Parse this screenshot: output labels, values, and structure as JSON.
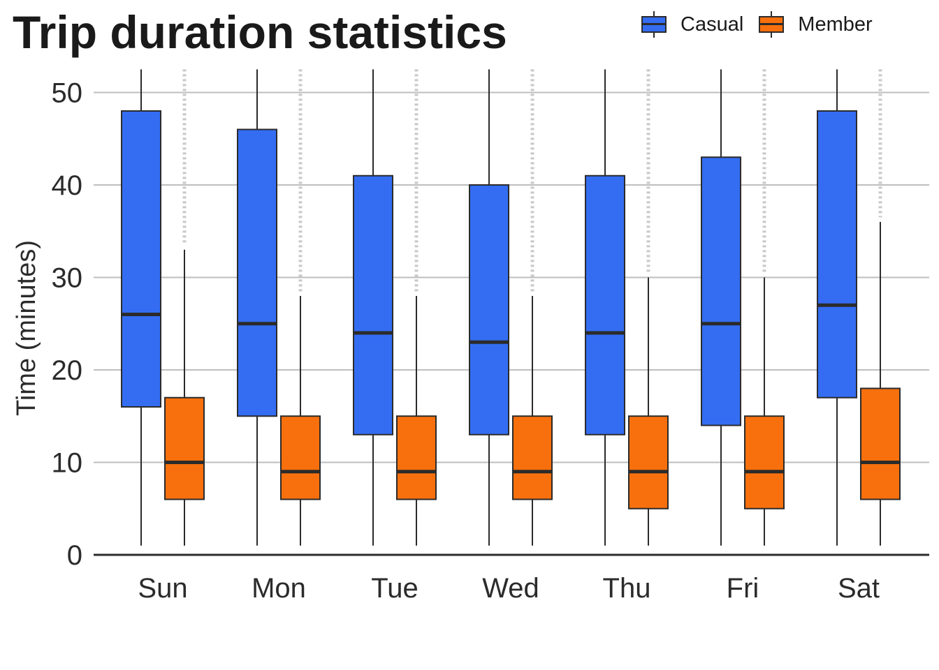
{
  "chart_data": {
    "type": "boxplot",
    "title": "Trip duration statistics",
    "xlabel": "",
    "ylabel": "Time (minutes)",
    "ylim": [
      0,
      50
    ],
    "yticks": [
      0,
      10,
      20,
      30,
      40,
      50
    ],
    "grid": "horizontal",
    "legend_position": "top-right",
    "categories": [
      "Sun",
      "Mon",
      "Tue",
      "Wed",
      "Thu",
      "Fri",
      "Sat"
    ],
    "series": [
      {
        "name": "Casual",
        "color": "#346DF2",
        "boxes": [
          {
            "low": 1,
            "q1": 16,
            "median": 26,
            "q3": 48,
            "high": 52.5,
            "outlier_range": []
          },
          {
            "low": 1,
            "q1": 15,
            "median": 25,
            "q3": 46,
            "high": 52.5,
            "outlier_range": []
          },
          {
            "low": 1,
            "q1": 13,
            "median": 24,
            "q3": 41,
            "high": 52.5,
            "outlier_range": []
          },
          {
            "low": 1,
            "q1": 13,
            "median": 23,
            "q3": 40,
            "high": 52.5,
            "outlier_range": []
          },
          {
            "low": 1,
            "q1": 13,
            "median": 24,
            "q3": 41,
            "high": 52.5,
            "outlier_range": []
          },
          {
            "low": 1,
            "q1": 14,
            "median": 25,
            "q3": 43,
            "high": 52.5,
            "outlier_range": []
          },
          {
            "low": 1,
            "q1": 17,
            "median": 27,
            "q3": 48,
            "high": 52.5,
            "outlier_range": []
          }
        ]
      },
      {
        "name": "Member",
        "color": "#F8700D",
        "boxes": [
          {
            "low": 1,
            "q1": 6,
            "median": 10,
            "q3": 17,
            "high": 33,
            "outlier_range": [
              33.5,
              52.5
            ]
          },
          {
            "low": 1,
            "q1": 6,
            "median": 9,
            "q3": 15,
            "high": 28,
            "outlier_range": [
              28.5,
              52.5
            ]
          },
          {
            "low": 1,
            "q1": 6,
            "median": 9,
            "q3": 15,
            "high": 28,
            "outlier_range": [
              28.5,
              52.5
            ]
          },
          {
            "low": 1,
            "q1": 6,
            "median": 9,
            "q3": 15,
            "high": 28,
            "outlier_range": [
              28.5,
              52.5
            ]
          },
          {
            "low": 1,
            "q1": 5,
            "median": 9,
            "q3": 15,
            "high": 30,
            "outlier_range": [
              30.5,
              52.5
            ]
          },
          {
            "low": 1,
            "q1": 5,
            "median": 9,
            "q3": 15,
            "high": 30,
            "outlier_range": [
              30.5,
              52.5
            ]
          },
          {
            "low": 1,
            "q1": 6,
            "median": 10,
            "q3": 18,
            "high": 36,
            "outlier_range": [
              36.5,
              52.5
            ]
          }
        ]
      }
    ]
  },
  "colors": {
    "grid": "#BEBEBE",
    "axis": "#2B2B2B",
    "outline": "#2B2B2B",
    "outliers": "#C8C8C8"
  }
}
